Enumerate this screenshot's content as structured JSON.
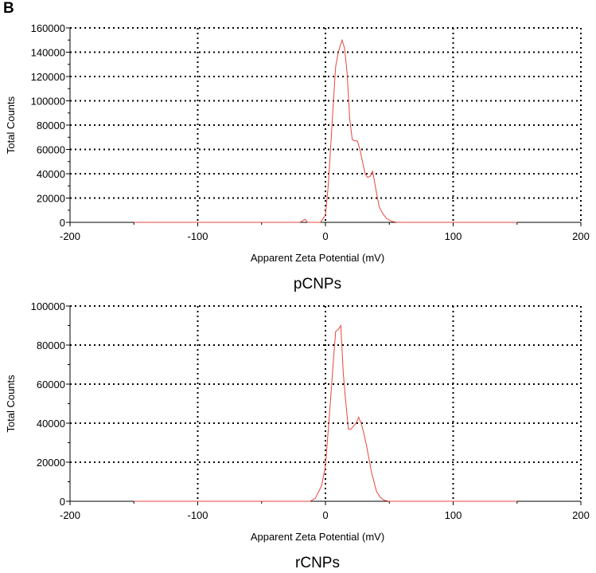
{
  "panel_label": "B",
  "chart_data": [
    {
      "type": "line",
      "caption": "pCNPs",
      "xlabel": "Apparent Zeta Potential (mV)",
      "ylabel": "Total Counts",
      "xlim": [
        -200,
        200
      ],
      "ylim": [
        0,
        160000
      ],
      "xticks": [
        "-200",
        "-100",
        "0",
        "100",
        "200"
      ],
      "yticks": [
        "0",
        "20000",
        "40000",
        "60000",
        "80000",
        "100000",
        "120000",
        "140000",
        "160000"
      ],
      "grid": true,
      "series_color": "#e8453c",
      "x": [
        -150,
        -20,
        -16,
        -14,
        -4,
        0,
        2,
        4,
        6,
        8,
        10,
        13,
        15,
        17,
        19,
        21,
        23,
        25,
        27,
        29,
        31,
        33,
        35,
        37,
        39,
        42,
        45,
        48,
        52,
        56,
        60,
        70,
        150
      ],
      "y": [
        0,
        0,
        2500,
        0,
        0,
        6000,
        28000,
        60000,
        95000,
        128000,
        140000,
        150000,
        143000,
        122000,
        85000,
        68000,
        67000,
        67000,
        60000,
        50000,
        40000,
        37000,
        38000,
        42000,
        30000,
        13000,
        7000,
        3000,
        800,
        0,
        0,
        0,
        0
      ]
    },
    {
      "type": "line",
      "caption": "rCNPs",
      "xlabel": "Apparent Zeta Potential (mV)",
      "ylabel": "Total Counts",
      "xlim": [
        -200,
        200
      ],
      "ylim": [
        0,
        100000
      ],
      "xticks": [
        "-200",
        "-100",
        "0",
        "100",
        "200"
      ],
      "yticks": [
        "0",
        "20000",
        "40000",
        "60000",
        "80000",
        "100000"
      ],
      "grid": true,
      "series_color": "#e8453c",
      "x": [
        -150,
        -12,
        -8,
        -3,
        0,
        2,
        4,
        6,
        8,
        10,
        12,
        14,
        16,
        18,
        20,
        22,
        24,
        26,
        28,
        30,
        32,
        34,
        36,
        38,
        40,
        43,
        46,
        50,
        54,
        150
      ],
      "y": [
        0,
        0,
        1500,
        8000,
        18000,
        35000,
        52000,
        70000,
        87000,
        88000,
        90000,
        65000,
        50000,
        37000,
        37000,
        38500,
        40000,
        43000,
        40000,
        35000,
        29000,
        22000,
        15000,
        10000,
        5000,
        2000,
        500,
        0,
        0,
        0
      ]
    }
  ]
}
